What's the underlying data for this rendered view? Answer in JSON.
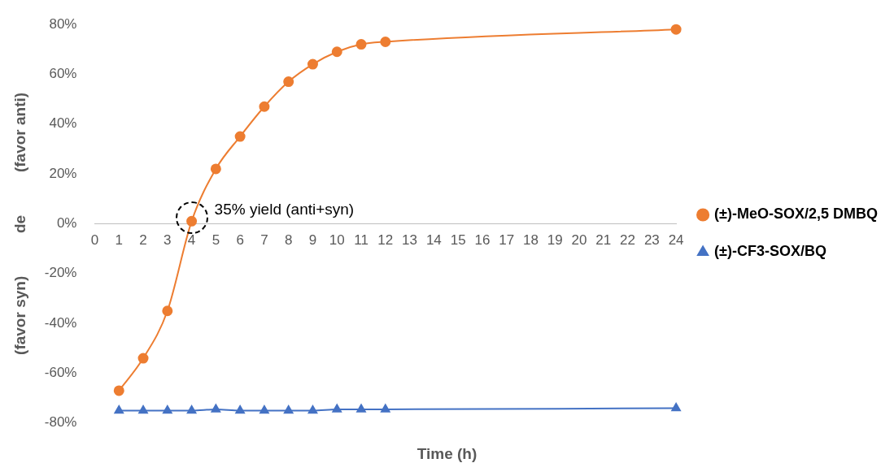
{
  "chart_data": {
    "type": "line",
    "xlabel": "Time (h)",
    "ylabel": "(favor syn)          de          (favor anti)",
    "xlim": [
      0,
      24
    ],
    "xticks": [
      0,
      1,
      2,
      3,
      4,
      5,
      6,
      7,
      8,
      9,
      10,
      11,
      12,
      13,
      14,
      15,
      16,
      17,
      18,
      19,
      20,
      21,
      22,
      23,
      24
    ],
    "ylim": [
      -80,
      80
    ],
    "yticks": [
      {
        "value": -80,
        "label": "-80%"
      },
      {
        "value": -60,
        "label": "-60%"
      },
      {
        "value": -40,
        "label": "-40%"
      },
      {
        "value": -20,
        "label": "-20%"
      },
      {
        "value": 0,
        "label": "0%"
      },
      {
        "value": 20,
        "label": "20%"
      },
      {
        "value": 40,
        "label": "40%"
      },
      {
        "value": 60,
        "label": "60%"
      },
      {
        "value": 80,
        "label": "80%"
      }
    ],
    "x": [
      1,
      2,
      3,
      4,
      5,
      6,
      7,
      8,
      9,
      10,
      11,
      12,
      24
    ],
    "series": [
      {
        "name": "(±)-MeO-SOX/2,5 DMBQ",
        "color": "#ed7d31",
        "marker": "circle",
        "values": [
          -67,
          -54,
          -35,
          1,
          22,
          35,
          47,
          57,
          64,
          69,
          72,
          73,
          78
        ]
      },
      {
        "name": "(±)-CF3-SOX/BQ",
        "color": "#4472c4",
        "marker": "triangle",
        "values": [
          -75,
          -75,
          -75,
          -75,
          -74.5,
          -75,
          -75,
          -75,
          -75,
          -74.5,
          -74.5,
          -74.5,
          -74
        ]
      }
    ],
    "annotations": [
      {
        "text": "35% yield (anti+syn)",
        "x": 4,
        "y": 1
      }
    ],
    "grid": false,
    "legend": "right"
  }
}
